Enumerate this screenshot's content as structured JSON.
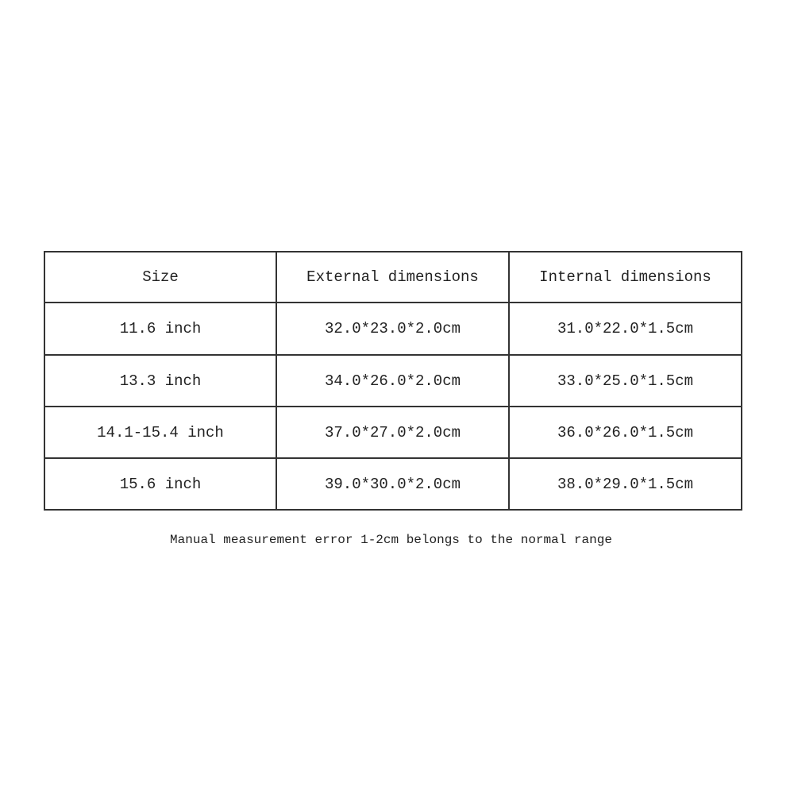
{
  "table": {
    "headers": [
      "Size",
      "External dimensions",
      "Internal dimensions"
    ],
    "rows": [
      [
        "11.6 inch",
        "32.0*23.0*2.0cm",
        "31.0*22.0*1.5cm"
      ],
      [
        "13.3 inch",
        "34.0*26.0*2.0cm",
        "33.0*25.0*1.5cm"
      ],
      [
        "14.1-15.4 inch",
        "37.0*27.0*2.0cm",
        "36.0*26.0*1.5cm"
      ],
      [
        "15.6 inch",
        "39.0*30.0*2.0cm",
        "38.0*29.0*1.5cm"
      ]
    ]
  },
  "caption": "Manual measurement error 1-2cm belongs to the normal range"
}
